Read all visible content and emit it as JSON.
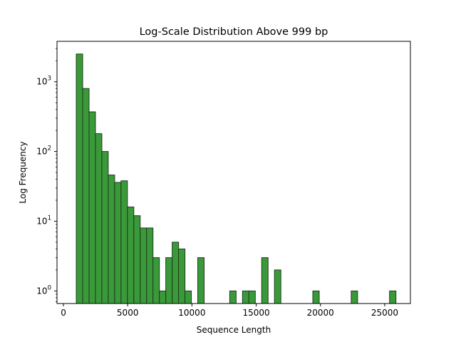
{
  "chart_data": {
    "type": "bar",
    "title": "Log-Scale Distribution Above 999 bp",
    "xlabel": "Sequence Length",
    "ylabel": "Log Frequency",
    "xlim": [
      -500,
      27000
    ],
    "ylim": [
      0.66,
      3800
    ],
    "yscale": "log",
    "grid": false,
    "bar_color": "#3a9a3a",
    "bar_edge_color": "#1f3a1f",
    "bin_width": 497.5,
    "bins": [
      {
        "x0": 1000,
        "value": 2500
      },
      {
        "x0": 1497.5,
        "value": 800
      },
      {
        "x0": 1995,
        "value": 370
      },
      {
        "x0": 2492.5,
        "value": 180
      },
      {
        "x0": 2990,
        "value": 100
      },
      {
        "x0": 3487.5,
        "value": 46
      },
      {
        "x0": 3985,
        "value": 36
      },
      {
        "x0": 4482.5,
        "value": 38
      },
      {
        "x0": 4980,
        "value": 16
      },
      {
        "x0": 5477.5,
        "value": 12
      },
      {
        "x0": 5975,
        "value": 8
      },
      {
        "x0": 6472.5,
        "value": 8
      },
      {
        "x0": 6970,
        "value": 3
      },
      {
        "x0": 7467.5,
        "value": 1
      },
      {
        "x0": 7965,
        "value": 3
      },
      {
        "x0": 8462.5,
        "value": 5
      },
      {
        "x0": 8960,
        "value": 4
      },
      {
        "x0": 9457.5,
        "value": 1
      },
      {
        "x0": 10452.5,
        "value": 3
      },
      {
        "x0": 12940,
        "value": 1
      },
      {
        "x0": 13935,
        "value": 1
      },
      {
        "x0": 14432.5,
        "value": 1
      },
      {
        "x0": 15427.5,
        "value": 3
      },
      {
        "x0": 16422.5,
        "value": 2
      },
      {
        "x0": 19407.5,
        "value": 1
      },
      {
        "x0": 22392.5,
        "value": 1
      },
      {
        "x0": 25377.5,
        "value": 1
      }
    ],
    "x_ticks": [
      0,
      5000,
      10000,
      15000,
      20000,
      25000
    ],
    "y_ticks": [
      {
        "value": 1,
        "base": "10",
        "exp": "0"
      },
      {
        "value": 10,
        "base": "10",
        "exp": "1"
      },
      {
        "value": 100,
        "base": "10",
        "exp": "2"
      },
      {
        "value": 1000,
        "base": "10",
        "exp": "3"
      }
    ]
  }
}
